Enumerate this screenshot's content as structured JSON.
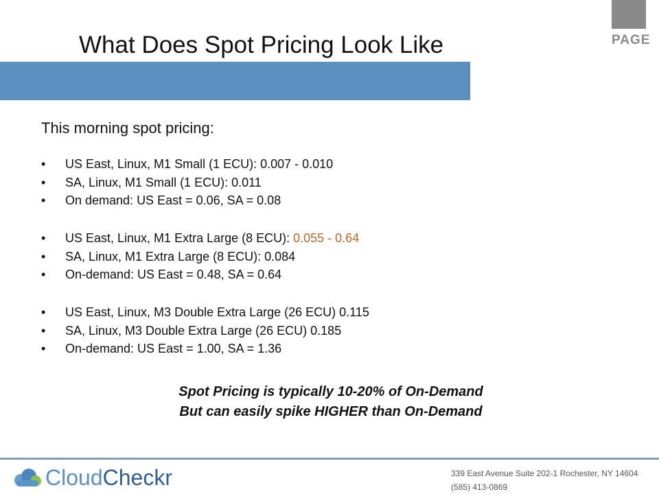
{
  "title": "What Does Spot Pricing Look Like",
  "page_label": "PAGE",
  "intro": "This morning spot pricing:",
  "groups": [
    [
      {
        "text": "US East, Linux, M1 Small (1 ECU): 0.007 - 0.010"
      },
      {
        "text": "SA, Linux, M1 Small (1 ECU): 0.011"
      },
      {
        "text": "On demand: US East = 0.06, SA = 0.08"
      }
    ],
    [
      {
        "text": "US East, Linux, M1 Extra Large (8 ECU): ",
        "highlight": "0.055 - 0.64"
      },
      {
        "text": "SA, Linux, M1 Extra Large (8 ECU): 0.084"
      },
      {
        "text": "On-demand: US East = 0.48, SA = 0.64"
      }
    ],
    [
      {
        "text": "US East, Linux, M3 Double Extra Large (26 ECU) 0.115"
      },
      {
        "text": "SA, Linux, M3 Double Extra Large (26 ECU) 0.185"
      },
      {
        "text": "On-demand: US East = 1.00, SA = 1.36"
      }
    ]
  ],
  "notes": [
    "Spot Pricing is typically 10-20% of On-Demand",
    "But can easily spike HIGHER than On-Demand"
  ],
  "footer": {
    "logo_part1": "Cloud",
    "logo_part2": "Checkr",
    "address": "339 East Avenue Suite 202-1 Rochester, NY 14604",
    "phone": "(585) 413-0869"
  }
}
